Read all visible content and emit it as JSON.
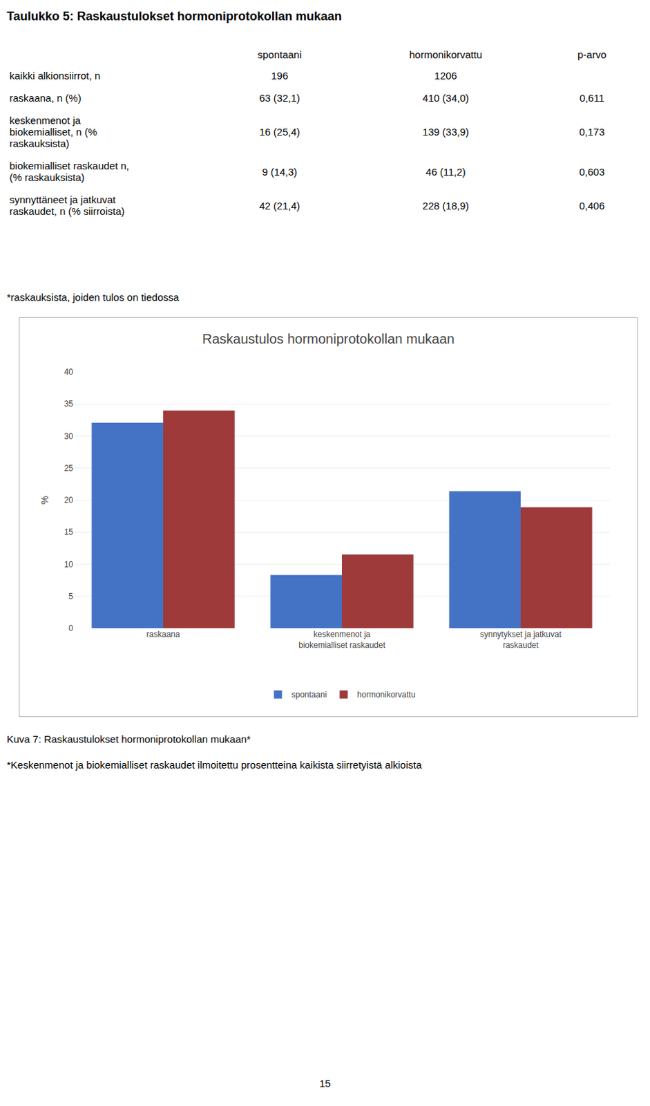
{
  "title_table": "Taulukko 5: Raskaustulokset hormoniprotokollan mukaan",
  "table": {
    "columns": [
      "spontaani",
      "hormonikorvattu",
      "p-arvo"
    ],
    "rows": [
      {
        "label": [
          "kaikki alkionsiirrot, n"
        ],
        "values": [
          "196",
          "1206",
          null
        ]
      },
      {
        "label": [
          "raskaana, n (%)"
        ],
        "values": [
          "63 (32,1)",
          "410 (34,0)",
          "0,611"
        ]
      },
      {
        "label": [
          "keskenmenot ja",
          "biokemialliset, n (%",
          "raskauksista)"
        ],
        "values": [
          "16 (25,4)",
          "139 (33,9)",
          "0,173"
        ]
      },
      {
        "label": [
          "biokemialliset raskaudet n,",
          "(% raskauksista)"
        ],
        "values": [
          "9 (14,3)",
          "46 (11,2)",
          "0,603"
        ]
      },
      {
        "label": [
          "synnyttäneet ja jatkuvat",
          "raskaudet, n (% siirroista)"
        ],
        "values": [
          "42 (21,4)",
          "228 (18,9)",
          "0,406"
        ]
      }
    ]
  },
  "footnote": "*raskauksista, joiden tulos on tiedossa",
  "chart_data": {
    "type": "bar",
    "title": "Raskaustulos hormoniprotokollan mukaan",
    "categories": [
      "raskaana",
      "keskenmenot ja\nbiokemialliset raskaudet",
      "synnytykset ja jatkuvat\nraskaudet"
    ],
    "series": [
      {
        "name": "spontaani",
        "color": "#4472C4",
        "values": [
          32.1,
          8.3,
          21.4
        ]
      },
      {
        "name": "hormonikorvattu",
        "color": "#9E3A3A",
        "values": [
          34.0,
          11.5,
          18.9
        ]
      }
    ],
    "ylabel": "%",
    "ylim": [
      0,
      40
    ],
    "yticks": [
      0,
      5,
      10,
      15,
      20,
      25,
      30,
      35,
      40
    ],
    "grid": true,
    "legend": "bottom"
  },
  "captions": [
    "Kuva 7: Raskaustulokset hormoniprotokollan mukaan*",
    "*Keskenmenot ja biokemialliset raskaudet ilmoitettu prosentteina kaikista siirretyistä alkioista"
  ],
  "page_number": "15"
}
